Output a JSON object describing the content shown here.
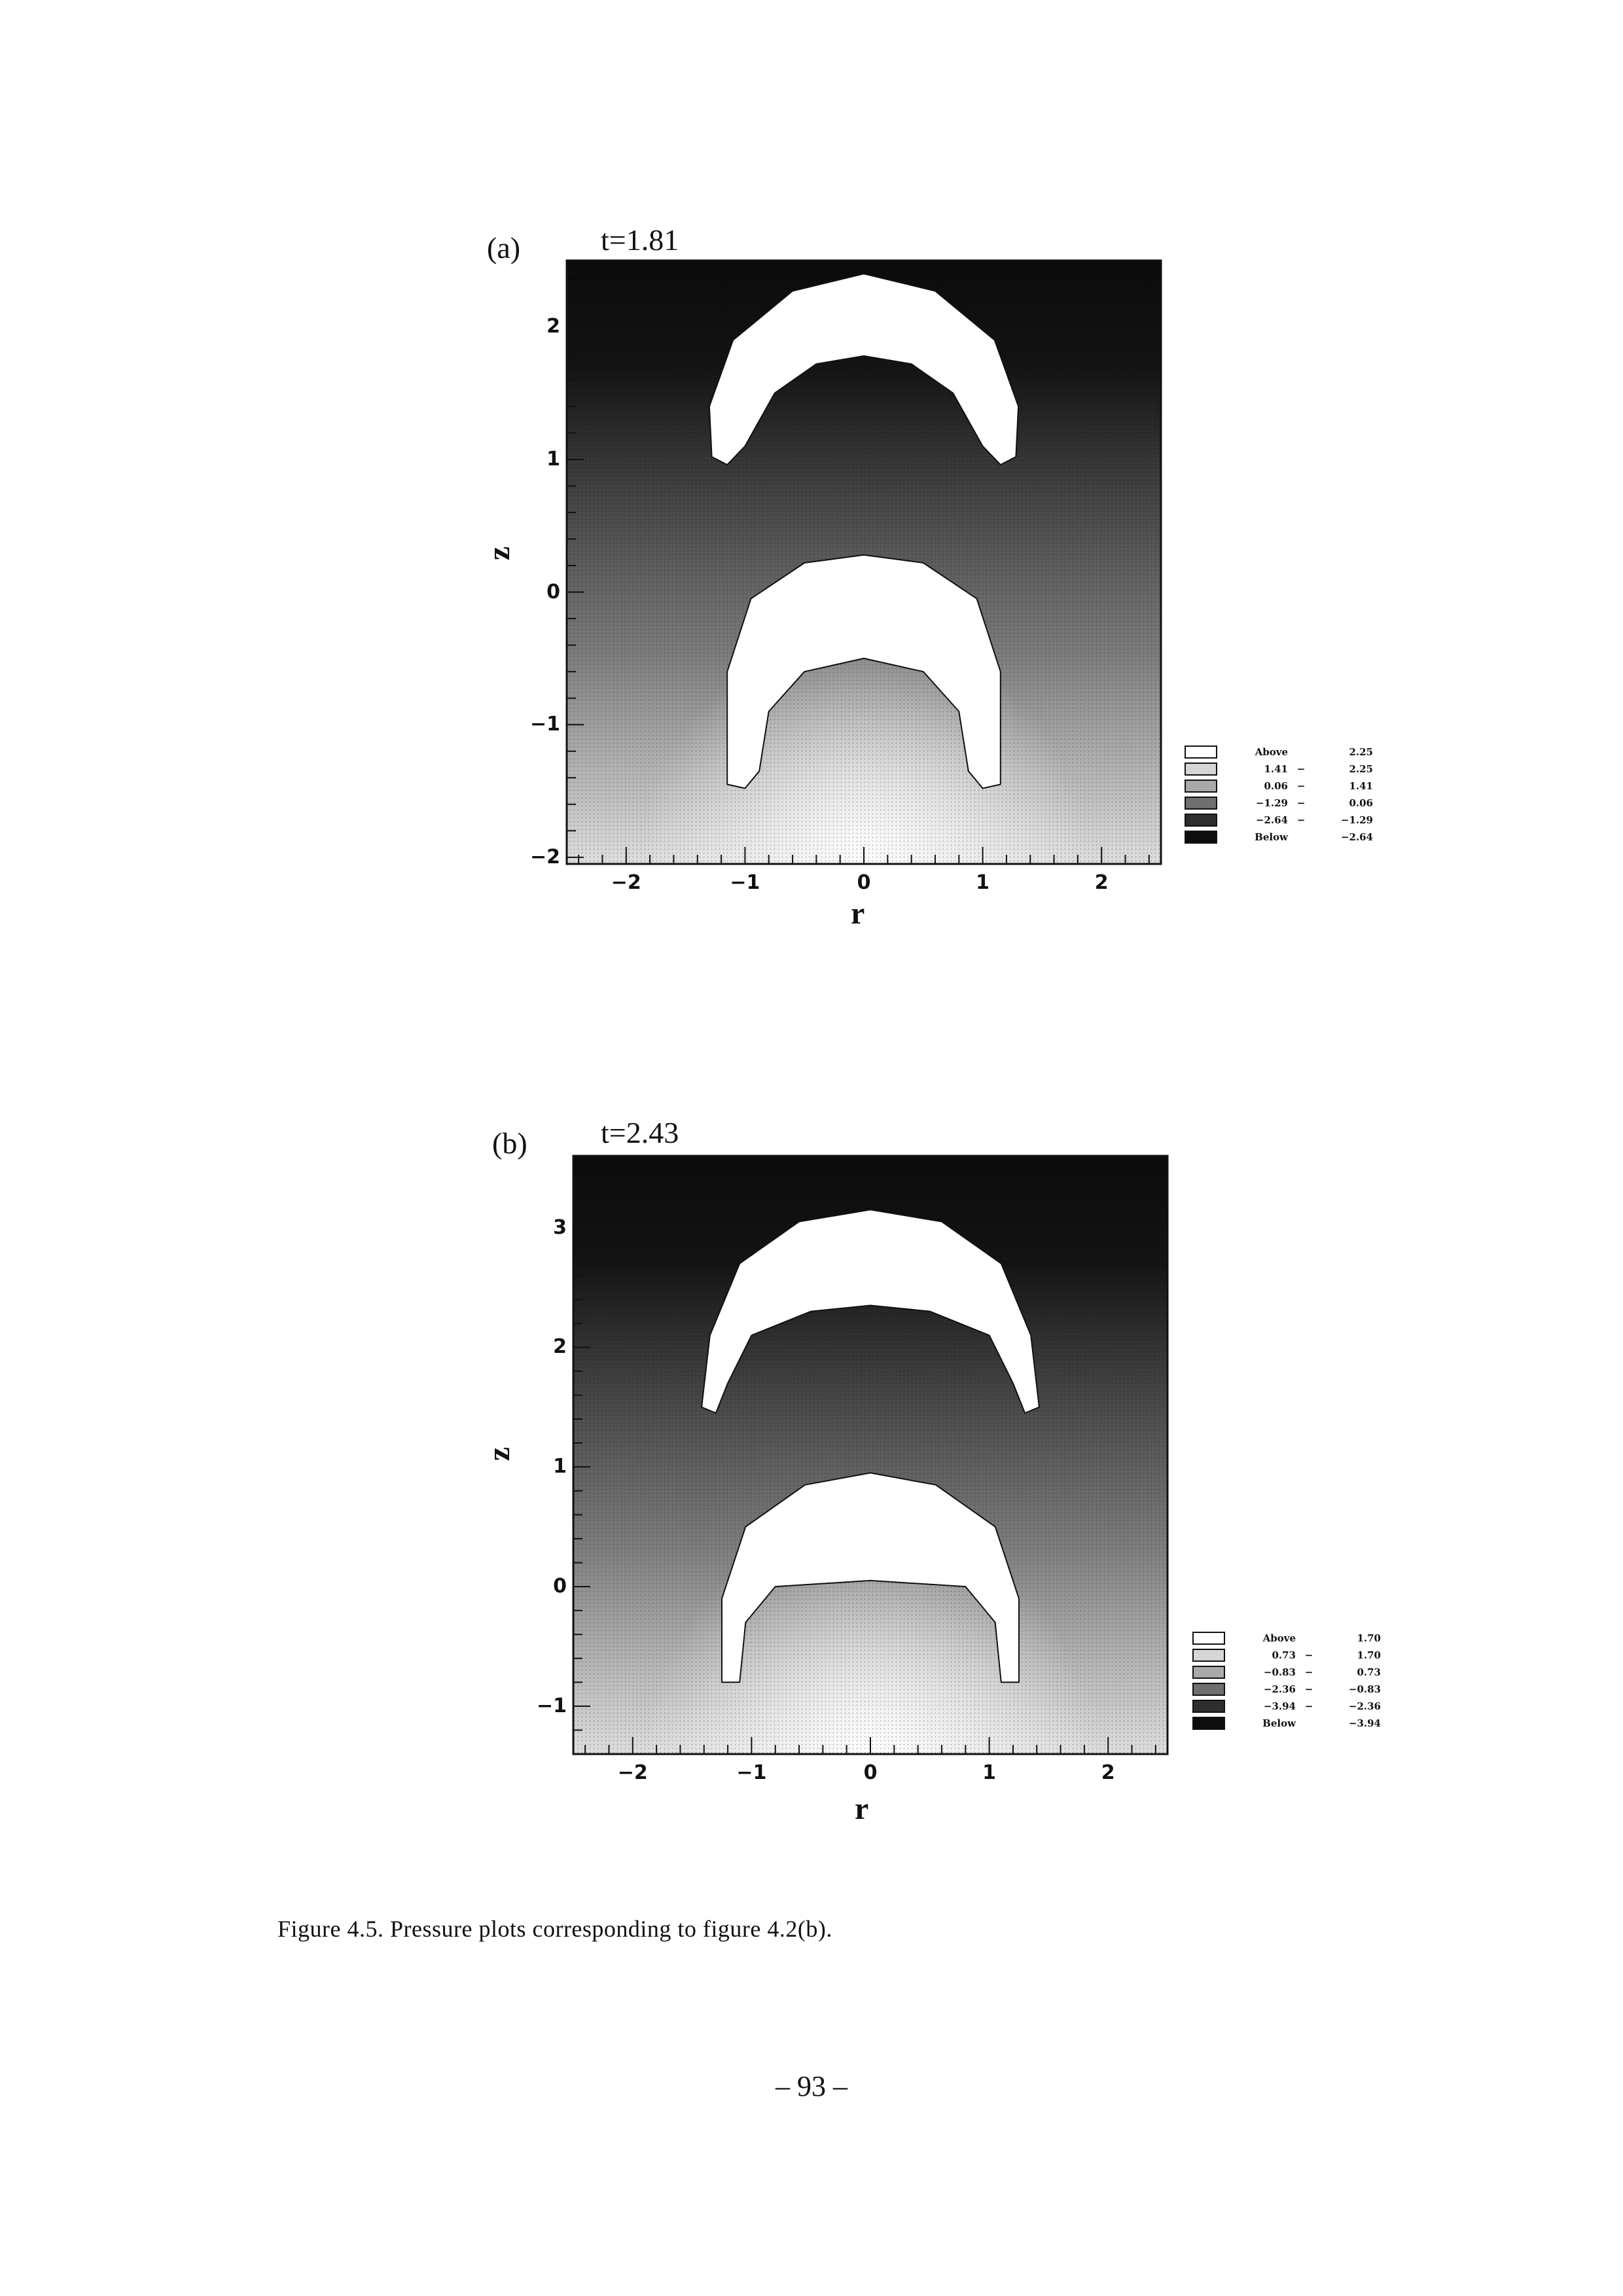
{
  "figure": {
    "caption": "Figure 4.5. Pressure plots corresponding to figure 4.2(b).",
    "page_number": "– 93 –"
  },
  "panel_a": {
    "panel_label": "(a)",
    "time_label": "t=1.81",
    "chart_data": {
      "type": "heatmap",
      "xlabel": "r",
      "ylabel": "z",
      "xlim": [
        -2.5,
        2.5
      ],
      "ylim": [
        -2.05,
        2.5
      ],
      "xticks": [
        -2,
        -1,
        0,
        1,
        2
      ],
      "yticks": [
        -2,
        -1,
        0,
        1,
        2
      ],
      "legend": [
        {
          "lo": "Above",
          "hi": "2.25",
          "fill": "#ffffff"
        },
        {
          "lo": "1.41",
          "hi": "2.25",
          "fill": "#d6d6d6"
        },
        {
          "lo": "0.06",
          "hi": "1.41",
          "fill": "#a9a9a9"
        },
        {
          "lo": "-1.29",
          "hi": "0.06",
          "fill": "#6f6f6f"
        },
        {
          "lo": "-2.64",
          "hi": "-1.29",
          "fill": "#2e2e2e"
        },
        {
          "lo": "Below",
          "hi": "-2.64",
          "fill": "#0d0d0d"
        }
      ],
      "bubbles": [
        {
          "outer": [
            [
              1.28,
              1.02
            ],
            [
              1.3,
              1.4
            ],
            [
              1.1,
              1.9
            ],
            [
              0.6,
              2.27
            ],
            [
              0,
              2.4
            ],
            [
              -0.6,
              2.27
            ],
            [
              -1.1,
              1.9
            ],
            [
              -1.3,
              1.4
            ],
            [
              -1.28,
              1.02
            ],
            [
              -1.15,
              0.96
            ],
            [
              -1.0,
              1.1
            ],
            [
              -0.75,
              1.5
            ],
            [
              -0.4,
              1.72
            ],
            [
              0,
              1.78
            ],
            [
              0.4,
              1.72
            ],
            [
              0.75,
              1.5
            ],
            [
              1.0,
              1.1
            ],
            [
              1.15,
              0.96
            ]
          ]
        },
        {
          "outer": [
            [
              1.15,
              -1.45
            ],
            [
              1.15,
              -0.6
            ],
            [
              0.95,
              -0.05
            ],
            [
              0.5,
              0.22
            ],
            [
              0,
              0.28
            ],
            [
              -0.5,
              0.22
            ],
            [
              -0.95,
              -0.05
            ],
            [
              -1.15,
              -0.6
            ],
            [
              -1.15,
              -1.45
            ],
            [
              -1.0,
              -1.48
            ],
            [
              -0.88,
              -1.35
            ],
            [
              -0.8,
              -0.9
            ],
            [
              -0.5,
              -0.6
            ],
            [
              0,
              -0.5
            ],
            [
              0.5,
              -0.6
            ],
            [
              0.8,
              -0.9
            ],
            [
              0.88,
              -1.35
            ],
            [
              1.0,
              -1.48
            ]
          ]
        }
      ]
    }
  },
  "panel_b": {
    "panel_label": "(b)",
    "time_label": "t=2.43",
    "chart_data": {
      "type": "heatmap",
      "xlabel": "r",
      "ylabel": "z",
      "xlim": [
        -2.5,
        2.5
      ],
      "ylim": [
        -1.4,
        3.6
      ],
      "xticks": [
        -2,
        -1,
        0,
        1,
        2
      ],
      "yticks": [
        -1,
        0,
        1,
        2,
        3
      ],
      "legend": [
        {
          "lo": "Above",
          "hi": "1.70",
          "fill": "#ffffff"
        },
        {
          "lo": "0.73",
          "hi": "1.70",
          "fill": "#d6d6d6"
        },
        {
          "lo": "-0.83",
          "hi": "0.73",
          "fill": "#a9a9a9"
        },
        {
          "lo": "-2.36",
          "hi": "-0.83",
          "fill": "#6f6f6f"
        },
        {
          "lo": "-3.94",
          "hi": "-2.36",
          "fill": "#2e2e2e"
        },
        {
          "lo": "Below",
          "hi": "-3.94",
          "fill": "#0d0d0d"
        }
      ],
      "bubbles": [
        {
          "outer": [
            [
              1.42,
              1.5
            ],
            [
              1.35,
              2.1
            ],
            [
              1.1,
              2.7
            ],
            [
              0.6,
              3.05
            ],
            [
              0,
              3.15
            ],
            [
              -0.6,
              3.05
            ],
            [
              -1.1,
              2.7
            ],
            [
              -1.35,
              2.1
            ],
            [
              -1.42,
              1.5
            ],
            [
              -1.3,
              1.45
            ],
            [
              -1.2,
              1.7
            ],
            [
              -1.0,
              2.1
            ],
            [
              -0.5,
              2.3
            ],
            [
              0,
              2.35
            ],
            [
              0.5,
              2.3
            ],
            [
              1.0,
              2.1
            ],
            [
              1.2,
              1.7
            ],
            [
              1.3,
              1.45
            ]
          ]
        },
        {
          "outer": [
            [
              1.25,
              -0.8
            ],
            [
              1.25,
              -0.1
            ],
            [
              1.05,
              0.5
            ],
            [
              0.55,
              0.85
            ],
            [
              0,
              0.95
            ],
            [
              -0.55,
              0.85
            ],
            [
              -1.05,
              0.5
            ],
            [
              -1.25,
              -0.1
            ],
            [
              -1.25,
              -0.8
            ],
            [
              -1.1,
              -0.8
            ],
            [
              -1.08,
              -0.6
            ],
            [
              -1.05,
              -0.3
            ],
            [
              -0.8,
              0.0
            ],
            [
              0,
              0.05
            ],
            [
              0.8,
              0.0
            ],
            [
              1.05,
              -0.3
            ],
            [
              1.08,
              -0.6
            ],
            [
              1.1,
              -0.8
            ]
          ]
        }
      ]
    }
  }
}
